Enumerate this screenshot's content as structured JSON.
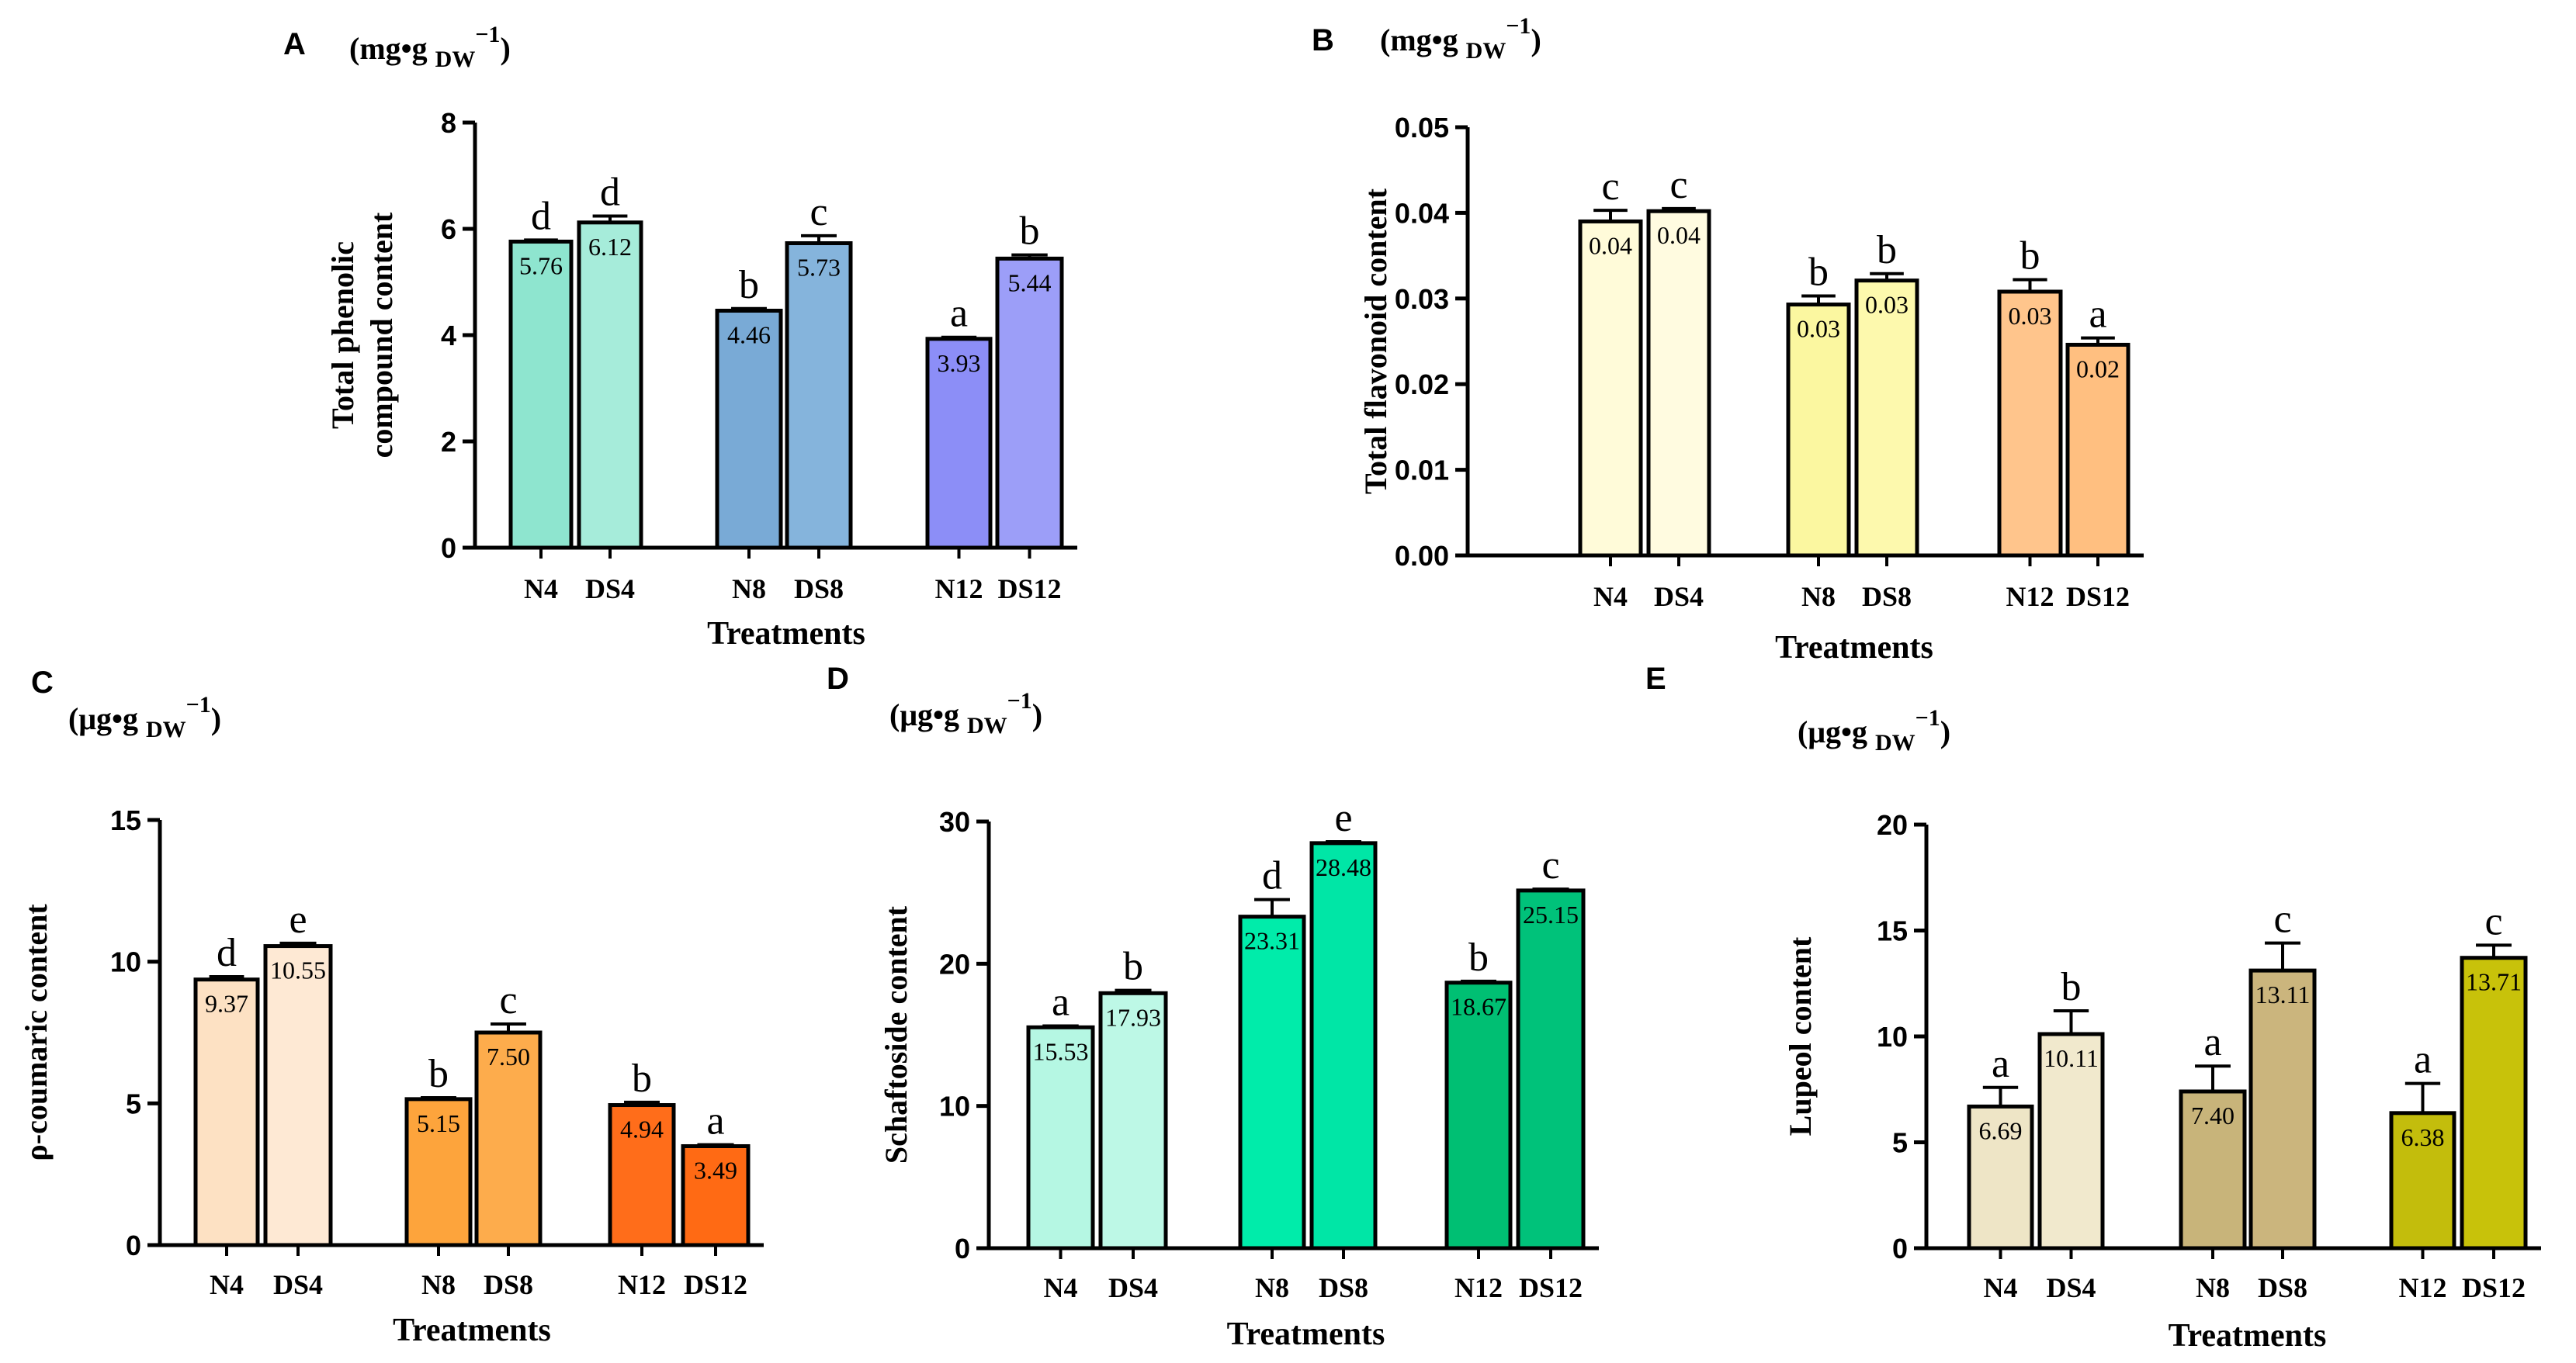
{
  "chart_data": [
    {
      "panel": "A",
      "type": "bar",
      "unit": "(mg•g DW−1)",
      "unit_main": "(mg•g",
      "unit_sub": "DW",
      "unit_sup": "−1",
      "unit_close": ")",
      "ylabel": [
        "Total phenolic",
        "compound content"
      ],
      "xlabel": "Treatments",
      "ylim": [
        0,
        8
      ],
      "yticks": [
        "0",
        "2",
        "4",
        "6",
        "8"
      ],
      "categories": [
        "N4",
        "DS4",
        "N8",
        "DS8",
        "N12",
        "DS12"
      ],
      "values": [
        5.76,
        6.12,
        4.46,
        5.73,
        3.93,
        5.44
      ],
      "value_labels": [
        "5.76",
        "6.12",
        "4.46",
        "5.73",
        "3.93",
        "5.44"
      ],
      "errors": [
        0.03,
        0.12,
        0.04,
        0.14,
        0.03,
        0.07
      ],
      "letters": [
        "d",
        "d",
        "b",
        "c",
        "a",
        "b"
      ],
      "colors": [
        "#8ee5cf",
        "#a6ecda",
        "#79aad6",
        "#85b4dc",
        "#8c8ef7",
        "#9c9ef8"
      ]
    },
    {
      "panel": "B",
      "type": "bar",
      "unit": "(mg•g DW−1)",
      "unit_main": "(mg•g",
      "unit_sub": "DW",
      "unit_sup": "−1",
      "unit_close": ")",
      "ylabel": [
        "Total flavonoid content"
      ],
      "xlabel": "Treatments",
      "ylim": [
        0,
        0.05
      ],
      "yticks": [
        "0.00",
        "0.01",
        "0.02",
        "0.03",
        "0.04",
        "0.05"
      ],
      "categories": [
        "N4",
        "DS4",
        "N8",
        "DS8",
        "N12",
        "DS12"
      ],
      "values": [
        0.039,
        0.0402,
        0.0293,
        0.0321,
        0.0308,
        0.0246
      ],
      "value_labels": [
        "0.04",
        "0.04",
        "0.03",
        "0.03",
        "0.03",
        "0.02"
      ],
      "errors": [
        0.0013,
        0.0003,
        0.001,
        0.0008,
        0.0014,
        0.0008
      ],
      "letters": [
        "c",
        "c",
        "b",
        "b",
        "b",
        "a"
      ],
      "colors": [
        "#fffbd9",
        "#fffbe0",
        "#fbf7a0",
        "#fdf9ad",
        "#ffc58c",
        "#ffbf80"
      ]
    },
    {
      "panel": "C",
      "type": "bar",
      "unit": "(μg•g DW−1)",
      "unit_main": "(μg•g",
      "unit_sub": "DW",
      "unit_sup": "−1",
      "unit_close": ")",
      "ylabel": [
        "ρ-coumaric content"
      ],
      "xlabel": "Treatments",
      "ylim": [
        0,
        15
      ],
      "yticks": [
        "0",
        "5",
        "10",
        "15"
      ],
      "categories": [
        "N4",
        "DS4",
        "N8",
        "DS8",
        "N12",
        "DS12"
      ],
      "values": [
        9.37,
        10.55,
        5.15,
        7.5,
        4.94,
        3.49
      ],
      "value_labels": [
        "9.37",
        "10.55",
        "5.15",
        "7.50",
        "4.94",
        "3.49"
      ],
      "errors": [
        0.1,
        0.1,
        0.05,
        0.3,
        0.1,
        0.05
      ],
      "letters": [
        "d",
        "e",
        "b",
        "c",
        "b",
        "a"
      ],
      "colors": [
        "#fde1c3",
        "#fee9d4",
        "#fda43c",
        "#fdac4c",
        "#ff6d1a",
        "#ff6a14"
      ]
    },
    {
      "panel": "D",
      "type": "bar",
      "unit": "(μg•g DW−1)",
      "unit_main": "(μg•g",
      "unit_sub": "DW",
      "unit_sup": "−1",
      "unit_close": ")",
      "ylabel": [
        "Schaftoside content"
      ],
      "xlabel": "Treatments",
      "ylim": [
        0,
        30
      ],
      "yticks": [
        "0",
        "10",
        "20",
        "30"
      ],
      "categories": [
        "N4",
        "DS4",
        "N8",
        "DS8",
        "N12",
        "DS12"
      ],
      "values": [
        15.53,
        17.93,
        23.31,
        28.48,
        18.67,
        25.15
      ],
      "value_labels": [
        "15.53",
        "17.93",
        "23.31",
        "28.48",
        "18.67",
        "25.15"
      ],
      "errors": [
        0.1,
        0.2,
        1.2,
        0.1,
        0.1,
        0.1
      ],
      "letters": [
        "a",
        "b",
        "d",
        "e",
        "b",
        "c"
      ],
      "colors": [
        "#b5f7e3",
        "#bdf8e6",
        "#00ecaa",
        "#00e6a6",
        "#00bf73",
        "#00c27a"
      ]
    },
    {
      "panel": "E",
      "type": "bar",
      "unit": "(μg•g DW−1)",
      "unit_main": "(μg•g",
      "unit_sub": "DW",
      "unit_sup": "−1",
      "unit_close": ")",
      "ylabel": [
        "Lupeol content"
      ],
      "xlabel": "Treatments",
      "ylim": [
        0,
        20
      ],
      "yticks": [
        "0",
        "5",
        "10",
        "15",
        "20"
      ],
      "categories": [
        "N4",
        "DS4",
        "N8",
        "DS8",
        "N12",
        "DS12"
      ],
      "values": [
        6.69,
        10.11,
        7.4,
        13.11,
        6.38,
        13.71
      ],
      "value_labels": [
        "6.69",
        "10.11",
        "7.40",
        "13.11",
        "6.38",
        "13.71"
      ],
      "errors": [
        0.9,
        1.1,
        1.2,
        1.3,
        1.4,
        0.6
      ],
      "letters": [
        "a",
        "b",
        "a",
        "c",
        "a",
        "c"
      ],
      "colors": [
        "#eee5c6",
        "#f1e9cd",
        "#c8b47a",
        "#cbb57d",
        "#c3bd0c",
        "#c8c20a"
      ]
    }
  ]
}
